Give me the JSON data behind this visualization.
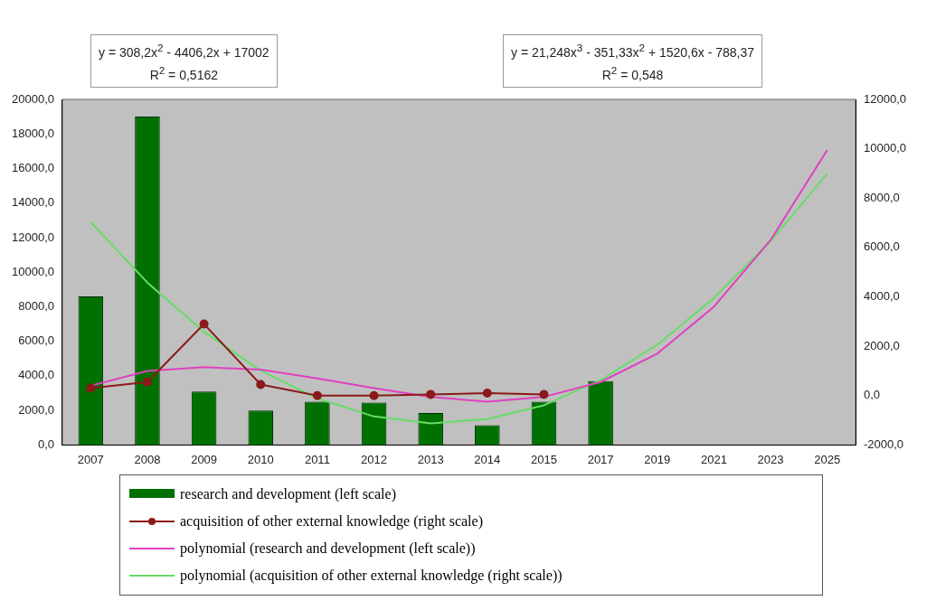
{
  "chart_data": {
    "type": "bar",
    "categories": [
      "2007",
      "2008",
      "2009",
      "2010",
      "2011",
      "2012",
      "2013",
      "2014",
      "2015",
      "2017",
      "2019",
      "2021",
      "2023",
      "2025"
    ],
    "series": [
      {
        "name": "research and development (left scale)",
        "color": "#007000",
        "values": [
          8600,
          19000,
          3100,
          2000,
          2500,
          2450,
          1850,
          1150,
          2500,
          3700,
          null,
          null,
          null,
          null
        ]
      },
      {
        "name": "acquisition of other external knowledge (right scale)",
        "type": "line",
        "axis": "y2",
        "marker": "circle",
        "color": "#8b1a1a",
        "values": [
          300,
          550,
          2900,
          450,
          0,
          0,
          50,
          100,
          50,
          null,
          null,
          null,
          null,
          null
        ]
      },
      {
        "name": "polynomial (research and development (left scale))",
        "type": "line",
        "axis": "y2",
        "marker": "none",
        "color": "#e040c0",
        "values": [
          400,
          1000,
          1150,
          1050,
          700,
          300,
          -50,
          -250,
          -50,
          550,
          1700,
          3600,
          6300,
          9950
        ]
      },
      {
        "name": "polynomial (acquisition of other external knowledge (right scale))",
        "type": "line",
        "marker": "none",
        "color": "#66dd66",
        "values": [
          12900,
          9400,
          6550,
          4300,
          2700,
          1650,
          1250,
          1500,
          2300,
          3750,
          5800,
          8500,
          11800,
          15700
        ]
      }
    ],
    "ylim": [
      0,
      20000
    ],
    "yticks": [
      {
        "value": 0,
        "label": "0,0"
      },
      {
        "value": 2000,
        "label": "2000,0"
      },
      {
        "value": 4000,
        "label": "4000,0"
      },
      {
        "value": 6000,
        "label": "6000,0"
      },
      {
        "value": 8000,
        "label": "8000,0"
      },
      {
        "value": 10000,
        "label": "10000,0"
      },
      {
        "value": 12000,
        "label": "12000,0"
      },
      {
        "value": 14000,
        "label": "14000,0"
      },
      {
        "value": 16000,
        "label": "16000,0"
      },
      {
        "value": 18000,
        "label": "18000,0"
      },
      {
        "value": 20000,
        "label": "20000,0"
      }
    ],
    "y2lim": [
      -2000,
      12000
    ],
    "y2ticks": [
      {
        "value": -2000,
        "label": "-2000,0"
      },
      {
        "value": 0,
        "label": "0,0"
      },
      {
        "value": 2000,
        "label": "2000,0"
      },
      {
        "value": 4000,
        "label": "4000,0"
      },
      {
        "value": 6000,
        "label": "6000,0"
      },
      {
        "value": 8000,
        "label": "8000,0"
      },
      {
        "value": 10000,
        "label": "10000,0"
      },
      {
        "value": 12000,
        "label": "12000,0"
      }
    ],
    "annotations": [
      "y = 308,2x$^{2}$ - 4406,2x + 17002",
      "R$^{2}$ = 0,5162",
      "y = 21,248x$^{3}$ - 351,33x$^{2}$ + 1520,6x - 788,37",
      "R$^{2}$ = 0,548"
    ],
    "legend": "bottom"
  }
}
